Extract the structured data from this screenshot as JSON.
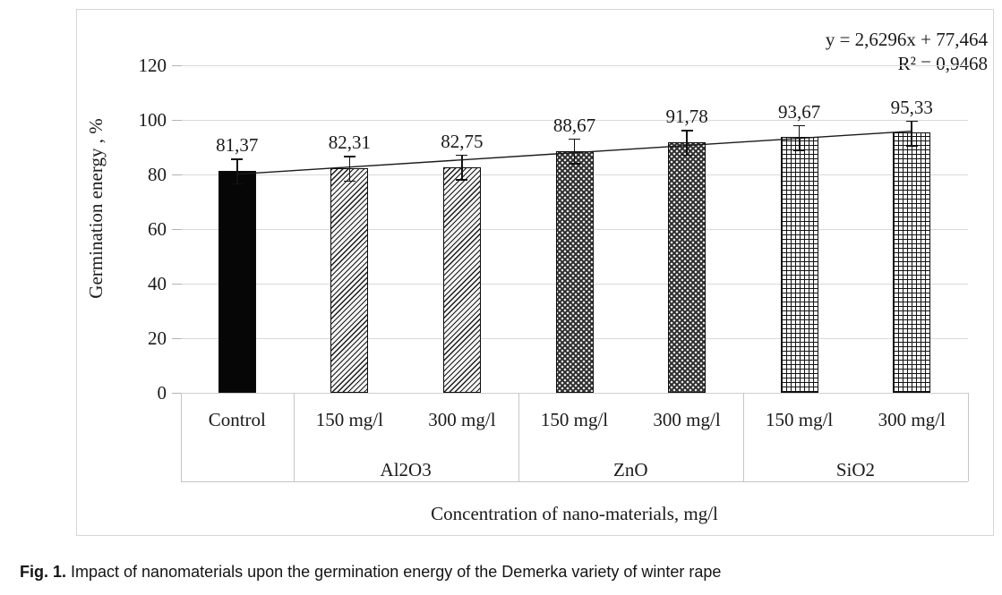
{
  "figure": {
    "caption_prefix": "Fig. 1.",
    "caption_text": " Impact of nanomaterials upon the germination energy of the Demerka variety of winter rape"
  },
  "chart_data": {
    "type": "bar",
    "title": "",
    "ylabel": "Germination energy , %",
    "xlabel": "Concentration of nano-materials, mg/l",
    "ylim": [
      0,
      120
    ],
    "yticks": [
      0,
      20,
      40,
      60,
      80,
      100,
      120
    ],
    "grid": true,
    "legend": "none",
    "categories": [
      "Control",
      "150 mg/l",
      "300 mg/l",
      "150 mg/l",
      "300 mg/l",
      "150 mg/l",
      "300 mg/l"
    ],
    "groups": [
      {
        "label": "",
        "span": 1
      },
      {
        "label": "Al2O3",
        "span": 2
      },
      {
        "label": "ZnO",
        "span": 2
      },
      {
        "label": "SiO2",
        "span": 2
      }
    ],
    "values": [
      81.37,
      82.31,
      82.75,
      88.67,
      91.78,
      93.67,
      95.33
    ],
    "value_labels": [
      "81,37",
      "82,31",
      "82,75",
      "88,67",
      "91,78",
      "93,67",
      "95,33"
    ],
    "error_bar_plus_minus": 4.5,
    "bar_patterns": [
      "solid-black",
      "diagonal-hatch",
      "diagonal-hatch",
      "dotted-gray",
      "dotted-gray",
      "grid-crosshatch",
      "grid-crosshatch"
    ],
    "bar_colors": {
      "black": "#060606",
      "pattern_ink": "#1a1a1a",
      "pattern_bg": "#f4f4f4"
    },
    "trendline": {
      "slope": 2.6296,
      "intercept": 77.464,
      "equation": "y = 2,6296x + 77,464",
      "r_squared": "R² = 0,9468"
    }
  }
}
